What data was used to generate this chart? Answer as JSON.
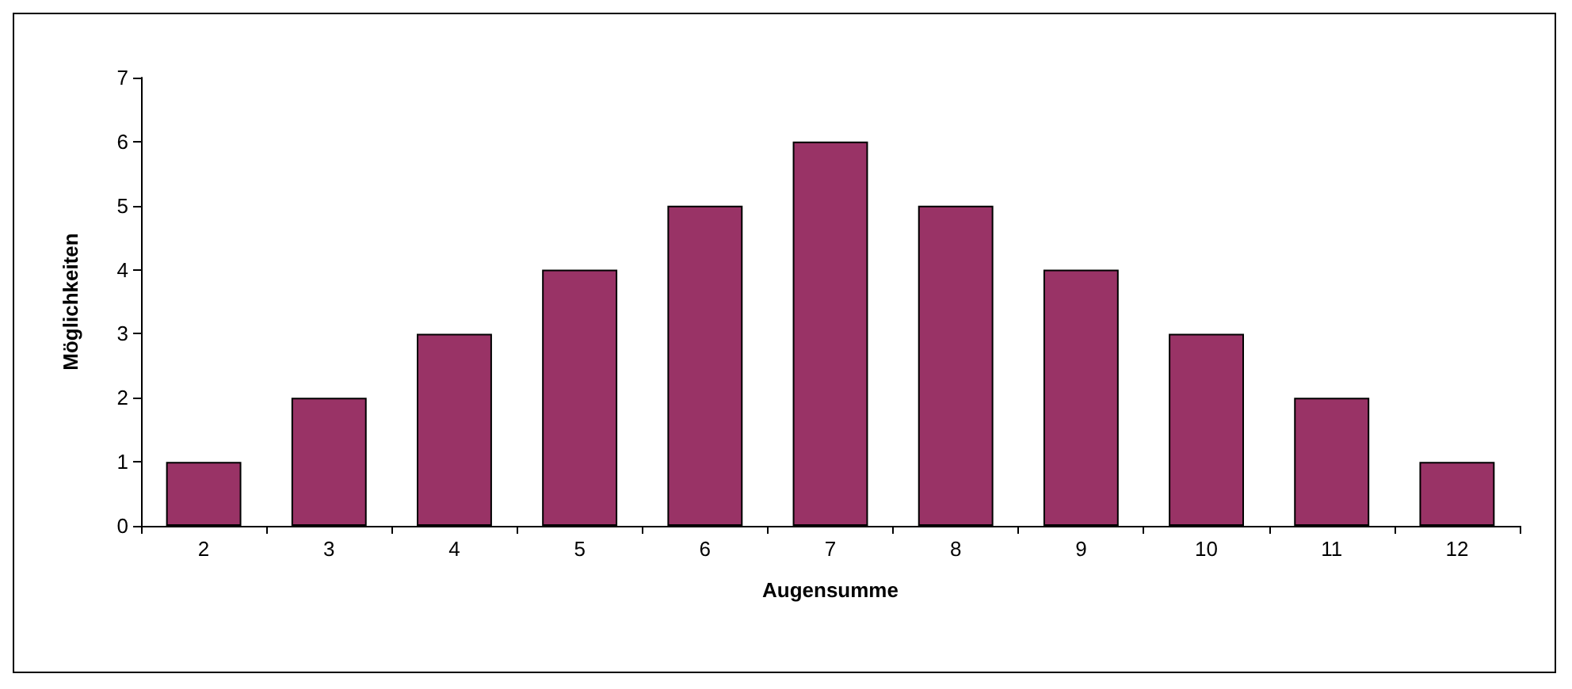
{
  "chart_data": {
    "type": "bar",
    "xlabel": "Augensumme",
    "ylabel": "Möglichkeiten",
    "categories": [
      "2",
      "3",
      "4",
      "5",
      "6",
      "7",
      "8",
      "9",
      "10",
      "11",
      "12"
    ],
    "values": [
      1,
      2,
      3,
      4,
      5,
      6,
      5,
      4,
      3,
      2,
      1
    ],
    "color": "#993366",
    "ylim": [
      0,
      7
    ],
    "yticks": [
      0,
      1,
      2,
      3,
      4,
      5,
      6,
      7
    ],
    "grid": false
  }
}
